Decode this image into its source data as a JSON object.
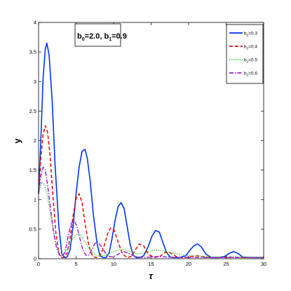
{
  "chart_data": {
    "type": "line",
    "title": "",
    "xlabel": "τ",
    "ylabel": "y",
    "xlim": [
      0,
      30
    ],
    "ylim": [
      0,
      4
    ],
    "xticks": [
      0,
      5,
      10,
      15,
      20,
      25,
      30
    ],
    "yticks": [
      0,
      0.5,
      1,
      1.5,
      2,
      2.5,
      3,
      3.5,
      4
    ],
    "grid": false,
    "legend_position": "top-right",
    "annotation": {
      "base1": "b",
      "sub1": "0",
      "val1": "=2.0, ",
      "base2": "b",
      "sub2": "1",
      "val2": "=0.9"
    },
    "series": [
      {
        "name_base": "b",
        "name_sub": "2",
        "name_value": "=0.3",
        "color": "#0033ff",
        "style": "solid",
        "x": [
          0,
          0.3,
          0.6,
          0.9,
          1.1,
          1.4,
          1.8,
          2.2,
          2.7,
          3.1,
          3.5,
          3.8,
          4.2,
          4.6,
          5.0,
          5.4,
          5.8,
          6.2,
          6.5,
          6.9,
          7.3,
          7.8,
          8.2,
          8.6,
          9.0,
          9.4,
          9.8,
          10.2,
          10.6,
          11.0,
          11.4,
          11.8,
          12.2,
          12.6,
          13.0,
          13.5,
          14.0,
          14.6,
          15.1,
          15.6,
          16.1,
          16.5,
          17.0,
          17.5,
          18.0,
          18.8,
          19.6,
          20.2,
          20.7,
          21.2,
          21.7,
          22.3,
          23.0,
          24.0,
          24.8,
          25.4,
          26.0,
          26.6,
          27.2,
          28.2,
          29.0,
          30.0
        ],
        "y": [
          1.1,
          2.0,
          3.05,
          3.55,
          3.65,
          3.45,
          2.7,
          1.6,
          0.55,
          0.08,
          0.02,
          0.03,
          0.15,
          0.55,
          1.1,
          1.55,
          1.82,
          1.85,
          1.7,
          1.3,
          0.75,
          0.25,
          0.05,
          0.02,
          0.02,
          0.1,
          0.35,
          0.65,
          0.88,
          0.95,
          0.85,
          0.55,
          0.25,
          0.06,
          0.02,
          0.02,
          0.05,
          0.2,
          0.38,
          0.48,
          0.45,
          0.3,
          0.12,
          0.03,
          0.02,
          0.02,
          0.05,
          0.15,
          0.22,
          0.25,
          0.2,
          0.08,
          0.02,
          0.02,
          0.04,
          0.09,
          0.12,
          0.09,
          0.03,
          0.02,
          0.02,
          0.02
        ]
      },
      {
        "name_base": "b",
        "name_sub": "2",
        "name_value": "=0.4",
        "color": "#ee0000",
        "style": "dashed",
        "x": [
          0,
          0.3,
          0.6,
          0.9,
          1.2,
          1.5,
          1.9,
          2.3,
          2.7,
          3.0,
          3.4,
          3.8,
          4.2,
          4.6,
          5.0,
          5.4,
          5.8,
          6.2,
          6.7,
          7.2,
          7.7,
          8.2,
          8.7,
          9.2,
          9.6,
          10.1,
          10.6,
          11.2,
          11.8,
          12.4,
          12.9,
          13.4,
          14.0,
          14.6,
          15.4,
          16.2,
          16.8,
          17.3,
          17.8,
          18.6,
          19.6,
          20.4,
          21.2,
          22.0,
          23.0,
          24.2,
          25.4,
          26.6,
          28.0,
          30.0
        ],
        "y": [
          1.1,
          1.7,
          2.1,
          2.25,
          2.15,
          1.8,
          1.1,
          0.45,
          0.1,
          0.02,
          0.02,
          0.1,
          0.35,
          0.72,
          1.02,
          1.1,
          0.95,
          0.6,
          0.22,
          0.04,
          0.02,
          0.05,
          0.2,
          0.42,
          0.52,
          0.48,
          0.28,
          0.08,
          0.02,
          0.04,
          0.15,
          0.25,
          0.22,
          0.08,
          0.02,
          0.04,
          0.1,
          0.12,
          0.08,
          0.02,
          0.02,
          0.04,
          0.05,
          0.03,
          0.02,
          0.02,
          0.03,
          0.02,
          0.02,
          0.02
        ]
      },
      {
        "name_base": "b",
        "name_sub": "2",
        "name_value": "=0.5",
        "color": "#22cc22",
        "style": "dotted",
        "x": [
          0,
          0.4,
          0.8,
          1.2,
          1.6,
          2.0,
          2.4,
          2.8,
          3.2,
          3.6,
          4.0,
          4.4,
          4.8,
          5.2,
          5.6,
          6.0,
          6.5,
          7.0,
          7.5,
          8.0,
          8.6,
          9.2,
          9.8,
          10.4,
          11.0,
          11.6,
          12.2,
          12.8,
          13.4,
          14.0,
          14.6,
          15.2,
          15.8,
          16.4,
          17.0,
          17.8,
          18.6,
          19.4,
          20.5,
          22.0,
          24.0,
          26.0,
          28.0,
          30.0
        ],
        "y": [
          1.1,
          1.3,
          1.25,
          1.05,
          0.75,
          0.45,
          0.22,
          0.1,
          0.08,
          0.12,
          0.2,
          0.3,
          0.38,
          0.42,
          0.4,
          0.32,
          0.22,
          0.13,
          0.07,
          0.05,
          0.05,
          0.07,
          0.11,
          0.14,
          0.16,
          0.15,
          0.12,
          0.09,
          0.08,
          0.1,
          0.12,
          0.14,
          0.15,
          0.14,
          0.12,
          0.1,
          0.08,
          0.06,
          0.05,
          0.04,
          0.03,
          0.03,
          0.03,
          0.03
        ]
      },
      {
        "name_base": "b",
        "name_sub": "2",
        "name_value": "=0.6",
        "color": "#9922dd",
        "style": "dashdot",
        "x": [
          0,
          0.3,
          0.6,
          0.9,
          1.2,
          1.6,
          2.0,
          2.4,
          2.8,
          3.1,
          3.5,
          3.9,
          4.3,
          4.7,
          5.1,
          5.5,
          5.9,
          6.3,
          6.7,
          7.1,
          7.5,
          7.9,
          8.4,
          8.9,
          9.4,
          9.9,
          10.4,
          10.9,
          11.4,
          11.9,
          12.5,
          13.2,
          14.0,
          15.0,
          16.0,
          17.0,
          18.5,
          20.0,
          22.0,
          25.0,
          28.0,
          30.0
        ],
        "y": [
          1.1,
          1.4,
          1.55,
          1.5,
          1.25,
          0.85,
          0.45,
          0.18,
          0.06,
          0.04,
          0.1,
          0.35,
          0.58,
          0.66,
          0.55,
          0.35,
          0.15,
          0.06,
          0.06,
          0.15,
          0.26,
          0.28,
          0.2,
          0.1,
          0.04,
          0.03,
          0.06,
          0.1,
          0.12,
          0.1,
          0.06,
          0.03,
          0.02,
          0.03,
          0.04,
          0.03,
          0.02,
          0.02,
          0.02,
          0.02,
          0.02,
          0.02
        ]
      }
    ]
  }
}
